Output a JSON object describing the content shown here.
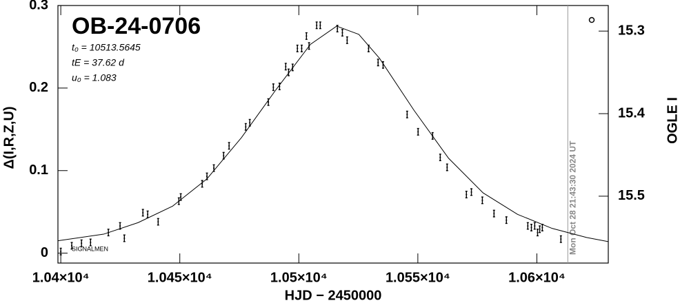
{
  "chart_data": {
    "type": "scatter",
    "title": "OB-24-0706",
    "annotations": [
      "t₀ = 10513.5645",
      "tE = 37.62 d",
      "u₀ = 1.083"
    ],
    "corner_label": "SIGNALMEN",
    "date_stamp": "Mon Oct 28 21:43:30 2024 UT",
    "date_line_x": 10613,
    "x_label": "HJD − 2450000",
    "y_label": "Δ(I,R,Z,U)",
    "y2_label": "OGLE I",
    "xlim": [
      10398.8,
      10630
    ],
    "ylim": [
      -0.012,
      0.3
    ],
    "y2lim": [
      15.581,
      15.269
    ],
    "xticks": [
      {
        "value": 10400,
        "label": "1.04×10⁴"
      },
      {
        "value": 10450,
        "label": "1.045×10⁴"
      },
      {
        "value": 10500,
        "label": "1.05×10⁴"
      },
      {
        "value": 10550,
        "label": "1.055×10⁴"
      },
      {
        "value": 10600,
        "label": "1.06×10⁴"
      }
    ],
    "yticks": [
      0,
      0.1,
      0.2,
      0.3
    ],
    "y2ticks": [
      15.3,
      15.4,
      15.5
    ],
    "series": [
      {
        "type": "errorbar",
        "color": "#000000",
        "x": [
          10400,
          10404.6,
          10408.7,
          10412.5,
          10420,
          10424.9,
          10426.7,
          10434.5,
          10436.5,
          10440.9,
          10449.6,
          10450.4,
          10459.4,
          10461.4,
          10464.3,
          10468.4,
          10470.7,
          10477.7,
          10479.4,
          10487.2,
          10489.3,
          10491.9,
          10494.5,
          10495.7,
          10497.4,
          10499.4,
          10501.2,
          10503.2,
          10504.3,
          10507.5,
          10509,
          10516.2,
          10518.3,
          10520.3,
          10529.3,
          10533.3,
          10535.4,
          10545.5,
          10550.1,
          10556.2,
          10559.4,
          10562.3,
          10570.4,
          10572.5,
          10577.1,
          10582,
          10587.2,
          10596.2,
          10597.7,
          10599.1,
          10600.3,
          10601.2,
          10602.3,
          10610.1
        ],
        "values": [
          0.002,
          0.009,
          0.012,
          0.013,
          0.025,
          0.033,
          0.018,
          0.049,
          0.047,
          0.038,
          0.063,
          0.068,
          0.084,
          0.093,
          0.103,
          0.118,
          0.13,
          0.153,
          0.158,
          0.183,
          0.201,
          0.202,
          0.226,
          0.219,
          0.225,
          0.248,
          0.248,
          0.263,
          0.251,
          0.276,
          0.276,
          0.272,
          0.267,
          0.258,
          0.248,
          0.231,
          0.228,
          0.168,
          0.147,
          0.142,
          0.116,
          0.104,
          0.071,
          0.074,
          0.064,
          0.048,
          0.04,
          0.033,
          0.031,
          0.033,
          0.025,
          0.029,
          0.031,
          0.017
        ],
        "errors": [
          0.004,
          0.004,
          0.004,
          0.004,
          0.004,
          0.004,
          0.004,
          0.004,
          0.004,
          0.004,
          0.004,
          0.004,
          0.004,
          0.004,
          0.004,
          0.004,
          0.004,
          0.004,
          0.004,
          0.004,
          0.004,
          0.004,
          0.004,
          0.004,
          0.004,
          0.004,
          0.004,
          0.004,
          0.004,
          0.004,
          0.004,
          0.004,
          0.004,
          0.004,
          0.004,
          0.004,
          0.004,
          0.004,
          0.004,
          0.004,
          0.004,
          0.004,
          0.004,
          0.004,
          0.004,
          0.004,
          0.004,
          0.004,
          0.004,
          0.004,
          0.004,
          0.004,
          0.004,
          0.004
        ]
      },
      {
        "type": "line",
        "color": "#000000",
        "x": [
          10398.8,
          10418,
          10432.5,
          10447,
          10461.4,
          10475.9,
          10490.4,
          10504.9,
          10515.9,
          10525.2,
          10533.9,
          10548.4,
          10562.9,
          10577.4,
          10591.9,
          10606.4,
          10620.9,
          10630
        ],
        "values": [
          0.015,
          0.023,
          0.037,
          0.057,
          0.09,
          0.14,
          0.198,
          0.253,
          0.275,
          0.265,
          0.236,
          0.173,
          0.115,
          0.073,
          0.047,
          0.03,
          0.019,
          0.014
        ]
      }
    ]
  }
}
